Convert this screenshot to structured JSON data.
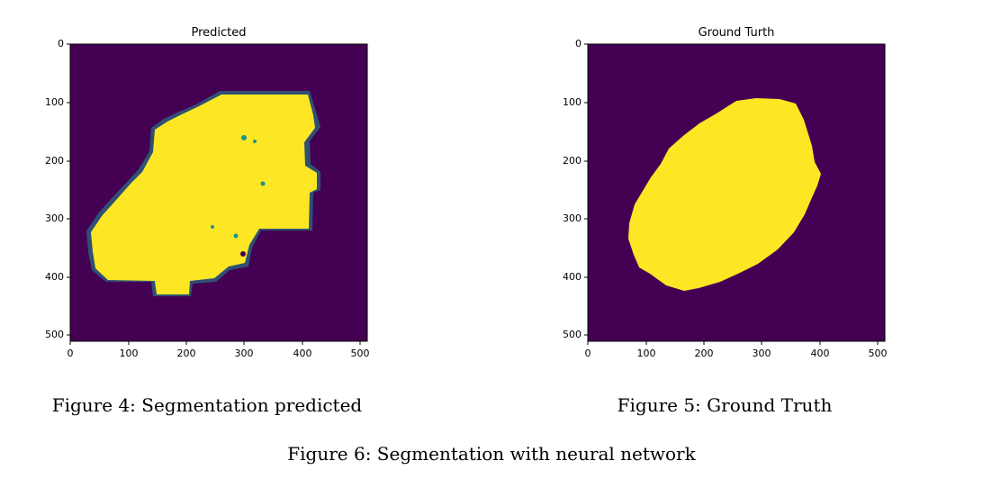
{
  "figures": [
    {
      "title": "Predicted",
      "caption": "Figure 4: Segmentation predicted",
      "y_ticks": [
        "0",
        "100",
        "200",
        "300",
        "400",
        "500"
      ],
      "x_ticks": [
        "0",
        "100",
        "200",
        "300",
        "400",
        "500"
      ]
    },
    {
      "title": "Ground Turth",
      "caption": "Figure 5: Ground Truth",
      "y_ticks": [
        "0",
        "100",
        "200",
        "300",
        "400",
        "500"
      ],
      "x_ticks": [
        "0",
        "100",
        "200",
        "300",
        "400",
        "500"
      ]
    }
  ],
  "main_caption": "Figure 6: Segmentation with neural network",
  "colors": {
    "background": "#440154",
    "foreground": "#fde725",
    "edge": "#21918c"
  }
}
